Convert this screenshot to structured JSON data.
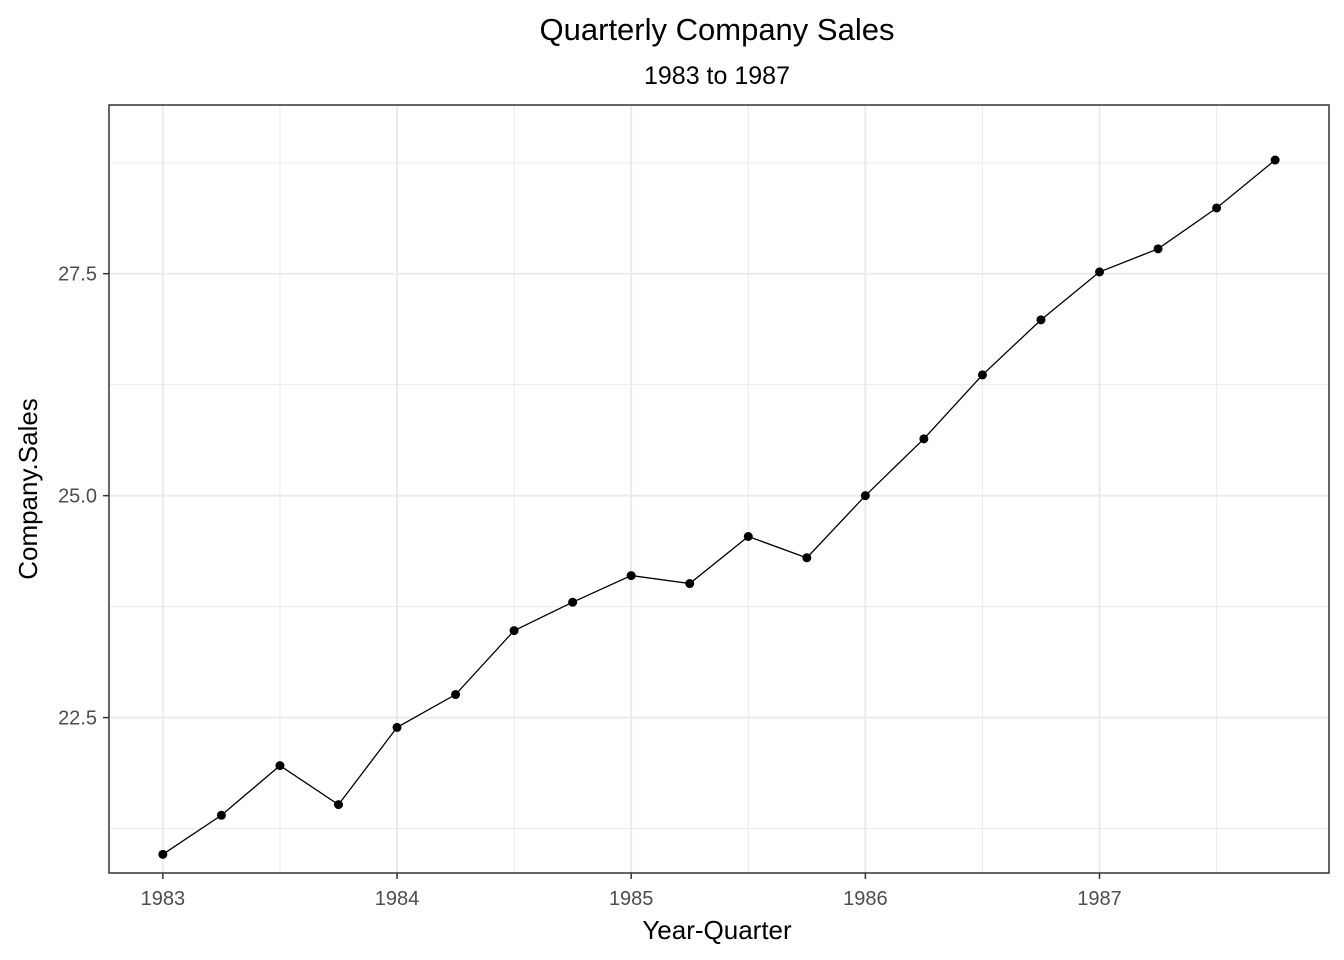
{
  "chart_data": {
    "type": "line",
    "title": "Quarterly Company Sales",
    "subtitle": "1983 to 1987",
    "xlabel": "Year-Quarter",
    "ylabel": "Company.Sales",
    "x_ticks": [
      1983,
      1984,
      1985,
      1986,
      1987
    ],
    "x_tick_labels": [
      "1983",
      "1984",
      "1985",
      "1986",
      "1987"
    ],
    "y_ticks": [
      22.5,
      25.0,
      27.5
    ],
    "y_tick_labels": [
      "22.5",
      "25.0",
      "27.5"
    ],
    "xlim": [
      1982.77,
      1987.98
    ],
    "ylim": [
      20.75,
      29.4
    ],
    "grid": true,
    "colors": {
      "line": "#000000",
      "point": "#000000",
      "grid": "#ebebeb",
      "panel_border": "#333333",
      "tick_label": "#4d4d4d"
    },
    "series": [
      {
        "x": [
          1983.0,
          1983.25,
          1983.5,
          1983.75,
          1984.0,
          1984.25,
          1984.5,
          1984.75,
          1985.0,
          1985.25,
          1985.5,
          1985.75,
          1986.0,
          1986.25,
          1986.5,
          1986.75,
          1987.0,
          1987.25,
          1987.5,
          1987.75
        ],
        "values": [
          20.96,
          21.4,
          21.96,
          21.52,
          22.39,
          22.76,
          23.48,
          23.8,
          24.1,
          24.01,
          24.54,
          24.3,
          25.0,
          25.64,
          26.36,
          26.98,
          27.52,
          27.78,
          28.24,
          28.78
        ]
      }
    ]
  }
}
